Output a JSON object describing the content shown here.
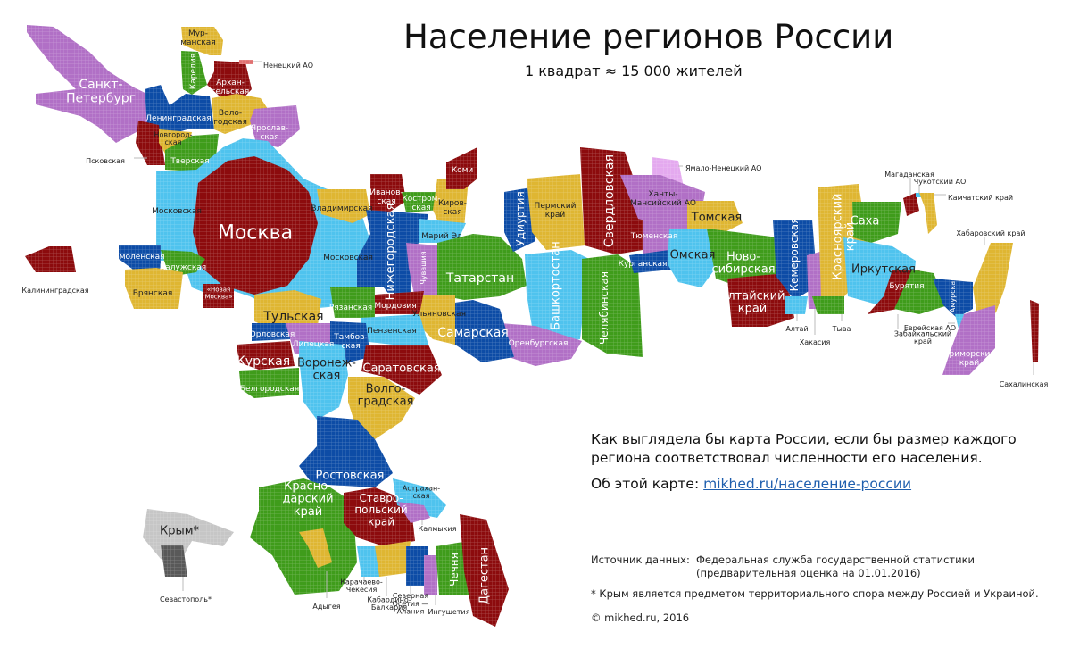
{
  "title": "Население регионов России",
  "subtitle": "1 квадрат ≈ 15 000 жителей",
  "description": "Как выглядела бы карта России, если бы размер каждого региона соответствовал численности его населения.",
  "about_label": "Об этой карте:",
  "about_link": "mikhed.ru/население-россии",
  "source_label": "Источник данных:",
  "source_lines": [
    "Федеральная служба государственной статистики",
    "(предварительная оценка на 01.01.2016)"
  ],
  "footnote": "* Крым является предметом территориального спора между Россией и Украиной.",
  "copyright": "© mikhed.ru, 2016",
  "colors": {
    "darkred": "#8c0b0d",
    "blue": "#0d4ca6",
    "lightblue": "#4fc3ee",
    "green": "#3f9c1b",
    "yellow": "#dfb632",
    "purple": "#b170c6",
    "lightpurple": "#e4a9ef",
    "pink": "#e07070",
    "grey": "#c6c6c6",
    "darkgrey": "#595959"
  },
  "regions": [
    {
      "id": "spb",
      "label": [
        "Санкт-",
        "Петербург"
      ],
      "color": "purple"
    },
    {
      "id": "murm",
      "label": [
        "Мур-",
        "манская"
      ],
      "color": "yellow"
    },
    {
      "id": "kar",
      "label": [
        "Карелия"
      ],
      "color": "green"
    },
    {
      "id": "arh",
      "label": [
        "Архан-",
        "гельская"
      ],
      "color": "darkred"
    },
    {
      "id": "nen",
      "label": [
        "Ненецкий АО"
      ],
      "color": "pink"
    },
    {
      "id": "len",
      "label": [
        "Ленинградская"
      ],
      "color": "blue"
    },
    {
      "id": "vol",
      "label": [
        "Воло-",
        "годская"
      ],
      "color": "yellow"
    },
    {
      "id": "yar",
      "label": [
        "Ярослав-",
        "ская"
      ],
      "color": "purple"
    },
    {
      "id": "psk",
      "label": [
        "Псковская"
      ],
      "color": "darkred"
    },
    {
      "id": "nov",
      "label": [
        "Новгород-",
        "ская"
      ],
      "color": "yellow"
    },
    {
      "id": "tver",
      "label": [
        "Тверская"
      ],
      "color": "green"
    },
    {
      "id": "mo",
      "label": [
        "Московская"
      ],
      "color": "lightblue"
    },
    {
      "id": "mo2",
      "label": [
        "Московская"
      ],
      "color": "lightblue"
    },
    {
      "id": "msk",
      "label": [
        "Москва"
      ],
      "color": "darkred"
    },
    {
      "id": "nmsk",
      "label": [
        "«Новая",
        "Москва»"
      ],
      "color": "darkred"
    },
    {
      "id": "smol",
      "label": [
        "Смоленская"
      ],
      "color": "blue"
    },
    {
      "id": "kal",
      "label": [
        "Калужская"
      ],
      "color": "green"
    },
    {
      "id": "br",
      "label": [
        "Брянская"
      ],
      "color": "yellow"
    },
    {
      "id": "kgd",
      "label": [
        "Калининградская"
      ],
      "color": "darkred"
    },
    {
      "id": "vlad",
      "label": [
        "Владимирская"
      ],
      "color": "yellow"
    },
    {
      "id": "iv",
      "label": [
        "Иванов-",
        "ская"
      ],
      "color": "darkred"
    },
    {
      "id": "kos",
      "label": [
        "Костром-",
        "ская"
      ],
      "color": "green"
    },
    {
      "id": "kir",
      "label": [
        "Киров-",
        "ская"
      ],
      "color": "yellow"
    },
    {
      "id": "komi",
      "label": [
        "Коми"
      ],
      "color": "darkred"
    },
    {
      "id": "nn",
      "label": [
        "Нижегородская"
      ],
      "color": "blue"
    },
    {
      "id": "me",
      "label": [
        "Марий Эл"
      ],
      "color": "lightblue"
    },
    {
      "id": "chu",
      "label": [
        "Чувашия"
      ],
      "color": "purple"
    },
    {
      "id": "tat",
      "label": [
        "Татарстан"
      ],
      "color": "green"
    },
    {
      "id": "udm",
      "label": [
        "Удмуртия"
      ],
      "color": "blue"
    },
    {
      "id": "perm",
      "label": [
        "Пермский",
        "край"
      ],
      "color": "yellow"
    },
    {
      "id": "sverd",
      "label": [
        "Свердловская"
      ],
      "color": "darkred"
    },
    {
      "id": "bash",
      "label": [
        "Башкортостан"
      ],
      "color": "lightblue"
    },
    {
      "id": "chel",
      "label": [
        "Челябинская"
      ],
      "color": "green"
    },
    {
      "id": "oren",
      "label": [
        "Оренбургская"
      ],
      "color": "purple"
    },
    {
      "id": "sam",
      "label": [
        "Самарская"
      ],
      "color": "blue"
    },
    {
      "id": "ul",
      "label": [
        "Ульяновская"
      ],
      "color": "yellow"
    },
    {
      "id": "mord",
      "label": [
        "Мордовия"
      ],
      "color": "darkred"
    },
    {
      "id": "ryaz",
      "label": [
        "Рязанская"
      ],
      "color": "green"
    },
    {
      "id": "penz",
      "label": [
        "Пензенская"
      ],
      "color": "lightblue"
    },
    {
      "id": "tula",
      "label": [
        "Тульская"
      ],
      "color": "yellow"
    },
    {
      "id": "orel",
      "label": [
        "Орловская"
      ],
      "color": "blue"
    },
    {
      "id": "lip",
      "label": [
        "Липецкая"
      ],
      "color": "purple"
    },
    {
      "id": "tamb",
      "label": [
        "Тамбов-",
        "ская"
      ],
      "color": "blue"
    },
    {
      "id": "kursk",
      "label": [
        "Курская"
      ],
      "color": "darkred"
    },
    {
      "id": "belg",
      "label": [
        "Белгородская"
      ],
      "color": "green"
    },
    {
      "id": "vor",
      "label": [
        "Воронеж-",
        "ская"
      ],
      "color": "lightblue"
    },
    {
      "id": "sar",
      "label": [
        "Саратовская"
      ],
      "color": "darkred"
    },
    {
      "id": "volg",
      "label": [
        "Волго-",
        "градская"
      ],
      "color": "yellow"
    },
    {
      "id": "rost",
      "label": [
        "Ростовская"
      ],
      "color": "blue"
    },
    {
      "id": "krd",
      "label": [
        "Красно-",
        "дарский",
        "край"
      ],
      "color": "green"
    },
    {
      "id": "ady",
      "label": [
        "Адыгея"
      ],
      "color": "yellow"
    },
    {
      "id": "stav",
      "label": [
        "Ставро-",
        "польский",
        "край"
      ],
      "color": "darkred"
    },
    {
      "id": "astr",
      "label": [
        "Астрахан-",
        "ская"
      ],
      "color": "lightblue"
    },
    {
      "id": "kalm",
      "label": [
        "Калмыкия"
      ],
      "color": "purple"
    },
    {
      "id": "kchr",
      "label": [
        "Карачаево-",
        "Чекесия"
      ],
      "color": "lightblue"
    },
    {
      "id": "kbr",
      "label": [
        "Кабардино-",
        "Балкария"
      ],
      "color": "yellow"
    },
    {
      "id": "oset",
      "label": [
        "Северная",
        "Осетия —",
        "Алания"
      ],
      "color": "blue"
    },
    {
      "id": "ing",
      "label": [
        "Ингушетия"
      ],
      "color": "purple"
    },
    {
      "id": "chech",
      "label": [
        "Чечня"
      ],
      "color": "green"
    },
    {
      "id": "dag",
      "label": [
        "Дагестан"
      ],
      "color": "darkred"
    },
    {
      "id": "crimea",
      "label": [
        "Крым*"
      ],
      "color": "grey"
    },
    {
      "id": "sev",
      "label": [
        "Севастополь*"
      ],
      "color": "darkgrey"
    },
    {
      "id": "yanao",
      "label": [
        "Ямало-Ненецкий АО"
      ],
      "color": "lightpurple"
    },
    {
      "id": "hmao",
      "label": [
        "Ханты-",
        "Мансийский АО"
      ],
      "color": "purple"
    },
    {
      "id": "tyum",
      "label": [
        "Тюменская"
      ],
      "color": "purple"
    },
    {
      "id": "tomsk",
      "label": [
        "Томская"
      ],
      "color": "yellow"
    },
    {
      "id": "kurg",
      "label": [
        "Курганская"
      ],
      "color": "blue"
    },
    {
      "id": "omsk",
      "label": [
        "Омская"
      ],
      "color": "lightblue"
    },
    {
      "id": "nsk",
      "label": [
        "Ново-",
        "сибирская"
      ],
      "color": "green"
    },
    {
      "id": "alt",
      "label": [
        "Алтайский",
        "край"
      ],
      "color": "darkred"
    },
    {
      "id": "kem",
      "label": [
        "Кемеровская"
      ],
      "color": "blue"
    },
    {
      "id": "altr",
      "label": [
        "Алтай"
      ],
      "color": "lightblue"
    },
    {
      "id": "hak",
      "label": [
        "Хакасия"
      ],
      "color": "purple"
    },
    {
      "id": "krs",
      "label": [
        "Красноярский",
        "край"
      ],
      "color": "yellow"
    },
    {
      "id": "tyva",
      "label": [
        "Тыва"
      ],
      "color": "green"
    },
    {
      "id": "saha",
      "label": [
        "Саха"
      ],
      "color": "green"
    },
    {
      "id": "irk",
      "label": [
        "Иркутская"
      ],
      "color": "lightblue"
    },
    {
      "id": "bur",
      "label": [
        "Бурятия"
      ],
      "color": "darkred"
    },
    {
      "id": "zab",
      "label": [
        "Забайкальский",
        "край"
      ],
      "color": "green"
    },
    {
      "id": "amur",
      "label": [
        "Амурская"
      ],
      "color": "blue"
    },
    {
      "id": "eao",
      "label": [
        "Еврейская АО"
      ],
      "color": "lightblue"
    },
    {
      "id": "hab",
      "label": [
        "Хабаровский край"
      ],
      "color": "yellow"
    },
    {
      "id": "prim",
      "label": [
        "Приморский",
        "край"
      ],
      "color": "purple"
    },
    {
      "id": "sakh",
      "label": [
        "Сахалинская"
      ],
      "color": "darkred"
    },
    {
      "id": "mag",
      "label": [
        "Магаданская"
      ],
      "color": "darkred"
    },
    {
      "id": "chuk",
      "label": [
        "Чукотский АО"
      ],
      "color": "lightblue"
    },
    {
      "id": "kam",
      "label": [
        "Камчатский край"
      ],
      "color": "yellow"
    }
  ]
}
